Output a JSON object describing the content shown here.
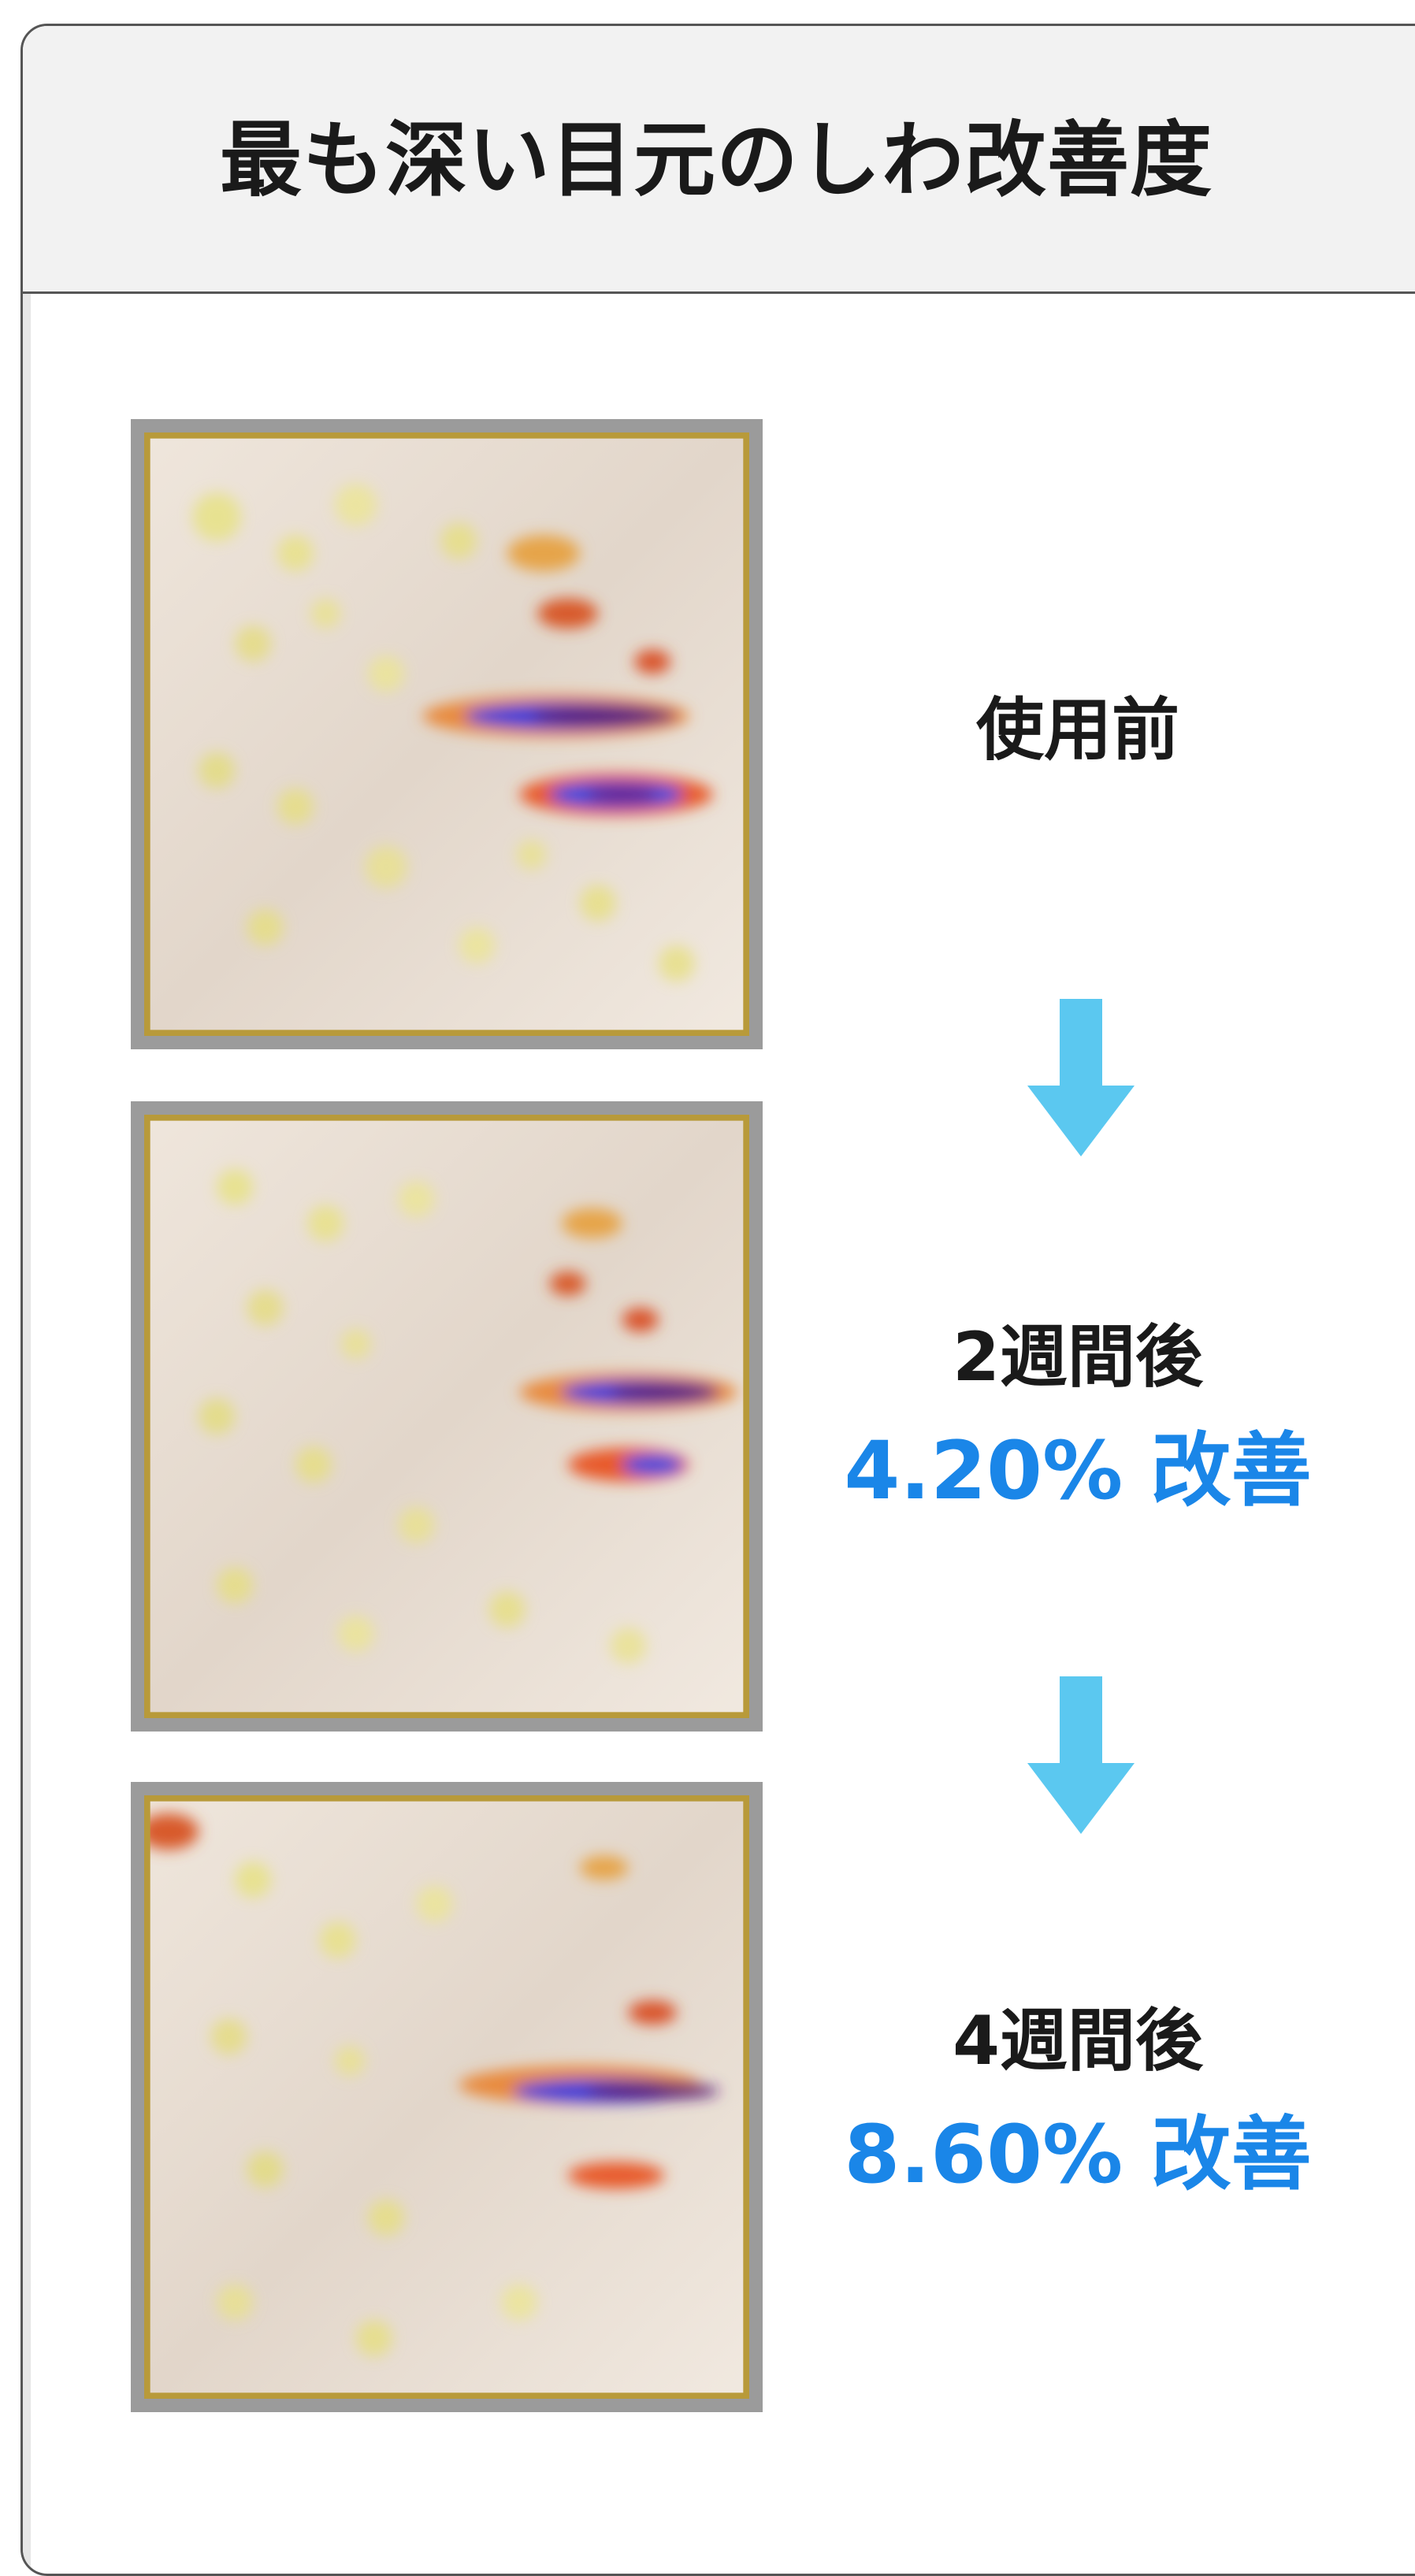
{
  "title": "最も深い目元のしわ改善度",
  "stages": [
    {
      "label": "使用前",
      "result": "",
      "image": "wrinkle-heatmap-before"
    },
    {
      "label": "2週間後",
      "result": "4.20% 改善",
      "image": "wrinkle-heatmap-2-weeks"
    },
    {
      "label": "4週間後",
      "result": "8.60% 改善",
      "image": "wrinkle-heatmap-4-weeks"
    }
  ],
  "arrow_icon": "arrow-down-icon",
  "colors": {
    "accent": "#1a86e8",
    "arrow": "#5bc8f0",
    "header_bg": "#f2f2f2",
    "photo_border": "#9b9b9b"
  }
}
